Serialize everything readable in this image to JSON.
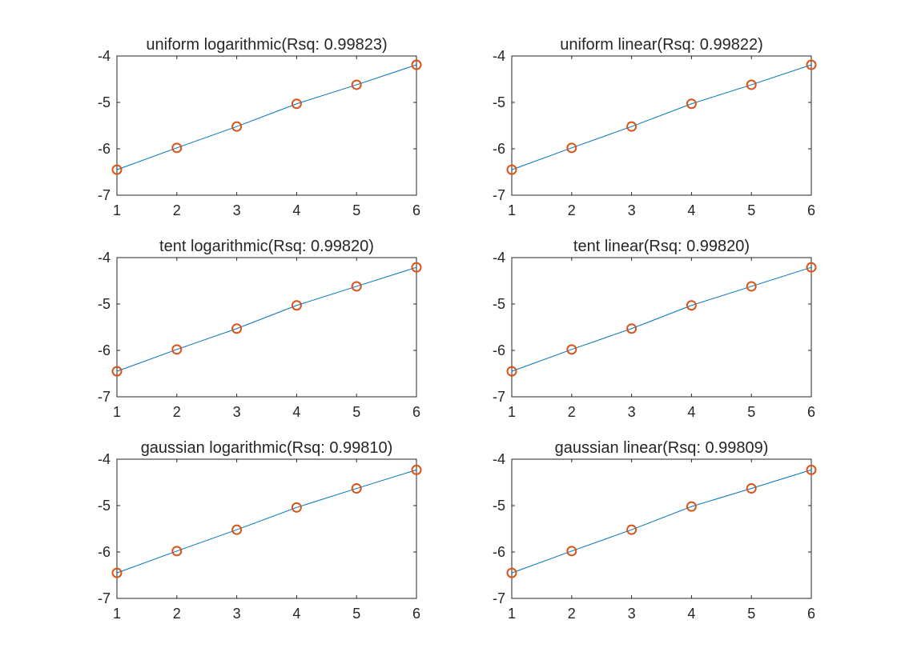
{
  "colors": {
    "line": "#0072BD",
    "marker": "#D95319",
    "axes": "#262626"
  },
  "chart_data": [
    {
      "type": "scatter",
      "title": "uniform logarithmic(Rsq: 0.99823)",
      "xlim": [
        1,
        6
      ],
      "ylim": [
        -7,
        -4
      ],
      "xticks": [
        "1",
        "2",
        "3",
        "4",
        "5",
        "6"
      ],
      "yticks": [
        "-4",
        "-5",
        "-6",
        "-7"
      ],
      "grid": false,
      "series": [
        {
          "kind": "line",
          "x": [
            1,
            2,
            3,
            4,
            5,
            6
          ],
          "y": [
            -6.45,
            -5.98,
            -5.52,
            -5.03,
            -4.62,
            -4.19
          ]
        },
        {
          "kind": "marker",
          "x": [
            1,
            2,
            3,
            4,
            5,
            6
          ],
          "y": [
            -6.45,
            -5.98,
            -5.52,
            -5.03,
            -4.62,
            -4.19
          ]
        }
      ]
    },
    {
      "type": "scatter",
      "title": "uniform linear(Rsq: 0.99822)",
      "xlim": [
        1,
        6
      ],
      "ylim": [
        -7,
        -4
      ],
      "xticks": [
        "1",
        "2",
        "3",
        "4",
        "5",
        "6"
      ],
      "yticks": [
        "-4",
        "-5",
        "-6",
        "-7"
      ],
      "grid": false,
      "series": [
        {
          "kind": "line",
          "x": [
            1,
            2,
            3,
            4,
            5,
            6
          ],
          "y": [
            -6.45,
            -5.98,
            -5.52,
            -5.03,
            -4.62,
            -4.19
          ]
        },
        {
          "kind": "marker",
          "x": [
            1,
            2,
            3,
            4,
            5,
            6
          ],
          "y": [
            -6.45,
            -5.98,
            -5.52,
            -5.03,
            -4.62,
            -4.19
          ]
        }
      ]
    },
    {
      "type": "scatter",
      "title": "tent logarithmic(Rsq: 0.99820)",
      "xlim": [
        1,
        6
      ],
      "ylim": [
        -7,
        -4
      ],
      "xticks": [
        "1",
        "2",
        "3",
        "4",
        "5",
        "6"
      ],
      "yticks": [
        "-4",
        "-5",
        "-6",
        "-7"
      ],
      "grid": false,
      "series": [
        {
          "kind": "line",
          "x": [
            1,
            2,
            3,
            4,
            5,
            6
          ],
          "y": [
            -6.45,
            -5.98,
            -5.53,
            -5.03,
            -4.62,
            -4.21
          ]
        },
        {
          "kind": "marker",
          "x": [
            1,
            2,
            3,
            4,
            5,
            6
          ],
          "y": [
            -6.45,
            -5.98,
            -5.53,
            -5.03,
            -4.62,
            -4.21
          ]
        }
      ]
    },
    {
      "type": "scatter",
      "title": "tent linear(Rsq: 0.99820)",
      "xlim": [
        1,
        6
      ],
      "ylim": [
        -7,
        -4
      ],
      "xticks": [
        "1",
        "2",
        "3",
        "4",
        "5",
        "6"
      ],
      "yticks": [
        "-4",
        "-5",
        "-6",
        "-7"
      ],
      "grid": false,
      "series": [
        {
          "kind": "line",
          "x": [
            1,
            2,
            3,
            4,
            5,
            6
          ],
          "y": [
            -6.45,
            -5.98,
            -5.53,
            -5.03,
            -4.62,
            -4.21
          ]
        },
        {
          "kind": "marker",
          "x": [
            1,
            2,
            3,
            4,
            5,
            6
          ],
          "y": [
            -6.45,
            -5.98,
            -5.53,
            -5.03,
            -4.62,
            -4.21
          ]
        }
      ]
    },
    {
      "type": "scatter",
      "title": "gaussian logarithmic(Rsq: 0.99810)",
      "xlim": [
        1,
        6
      ],
      "ylim": [
        -7,
        -4
      ],
      "xticks": [
        "1",
        "2",
        "3",
        "4",
        "5",
        "6"
      ],
      "yticks": [
        "-4",
        "-5",
        "-6",
        "-7"
      ],
      "grid": false,
      "series": [
        {
          "kind": "line",
          "x": [
            1,
            2,
            3,
            4,
            5,
            6
          ],
          "y": [
            -6.45,
            -5.98,
            -5.52,
            -5.04,
            -4.63,
            -4.23
          ]
        },
        {
          "kind": "marker",
          "x": [
            1,
            2,
            3,
            4,
            5,
            6
          ],
          "y": [
            -6.45,
            -5.98,
            -5.52,
            -5.04,
            -4.63,
            -4.23
          ]
        }
      ]
    },
    {
      "type": "scatter",
      "title": "gaussian linear(Rsq: 0.99809)",
      "xlim": [
        1,
        6
      ],
      "ylim": [
        -7,
        -4
      ],
      "xticks": [
        "1",
        "2",
        "3",
        "4",
        "5",
        "6"
      ],
      "yticks": [
        "-4",
        "-5",
        "-6",
        "-7"
      ],
      "grid": false,
      "series": [
        {
          "kind": "line",
          "x": [
            1,
            2,
            3,
            4,
            5,
            6
          ],
          "y": [
            -6.45,
            -5.98,
            -5.52,
            -5.02,
            -4.63,
            -4.23
          ]
        },
        {
          "kind": "marker",
          "x": [
            1,
            2,
            3,
            4,
            5,
            6
          ],
          "y": [
            -6.45,
            -5.98,
            -5.52,
            -5.02,
            -4.63,
            -4.23
          ]
        }
      ]
    }
  ]
}
